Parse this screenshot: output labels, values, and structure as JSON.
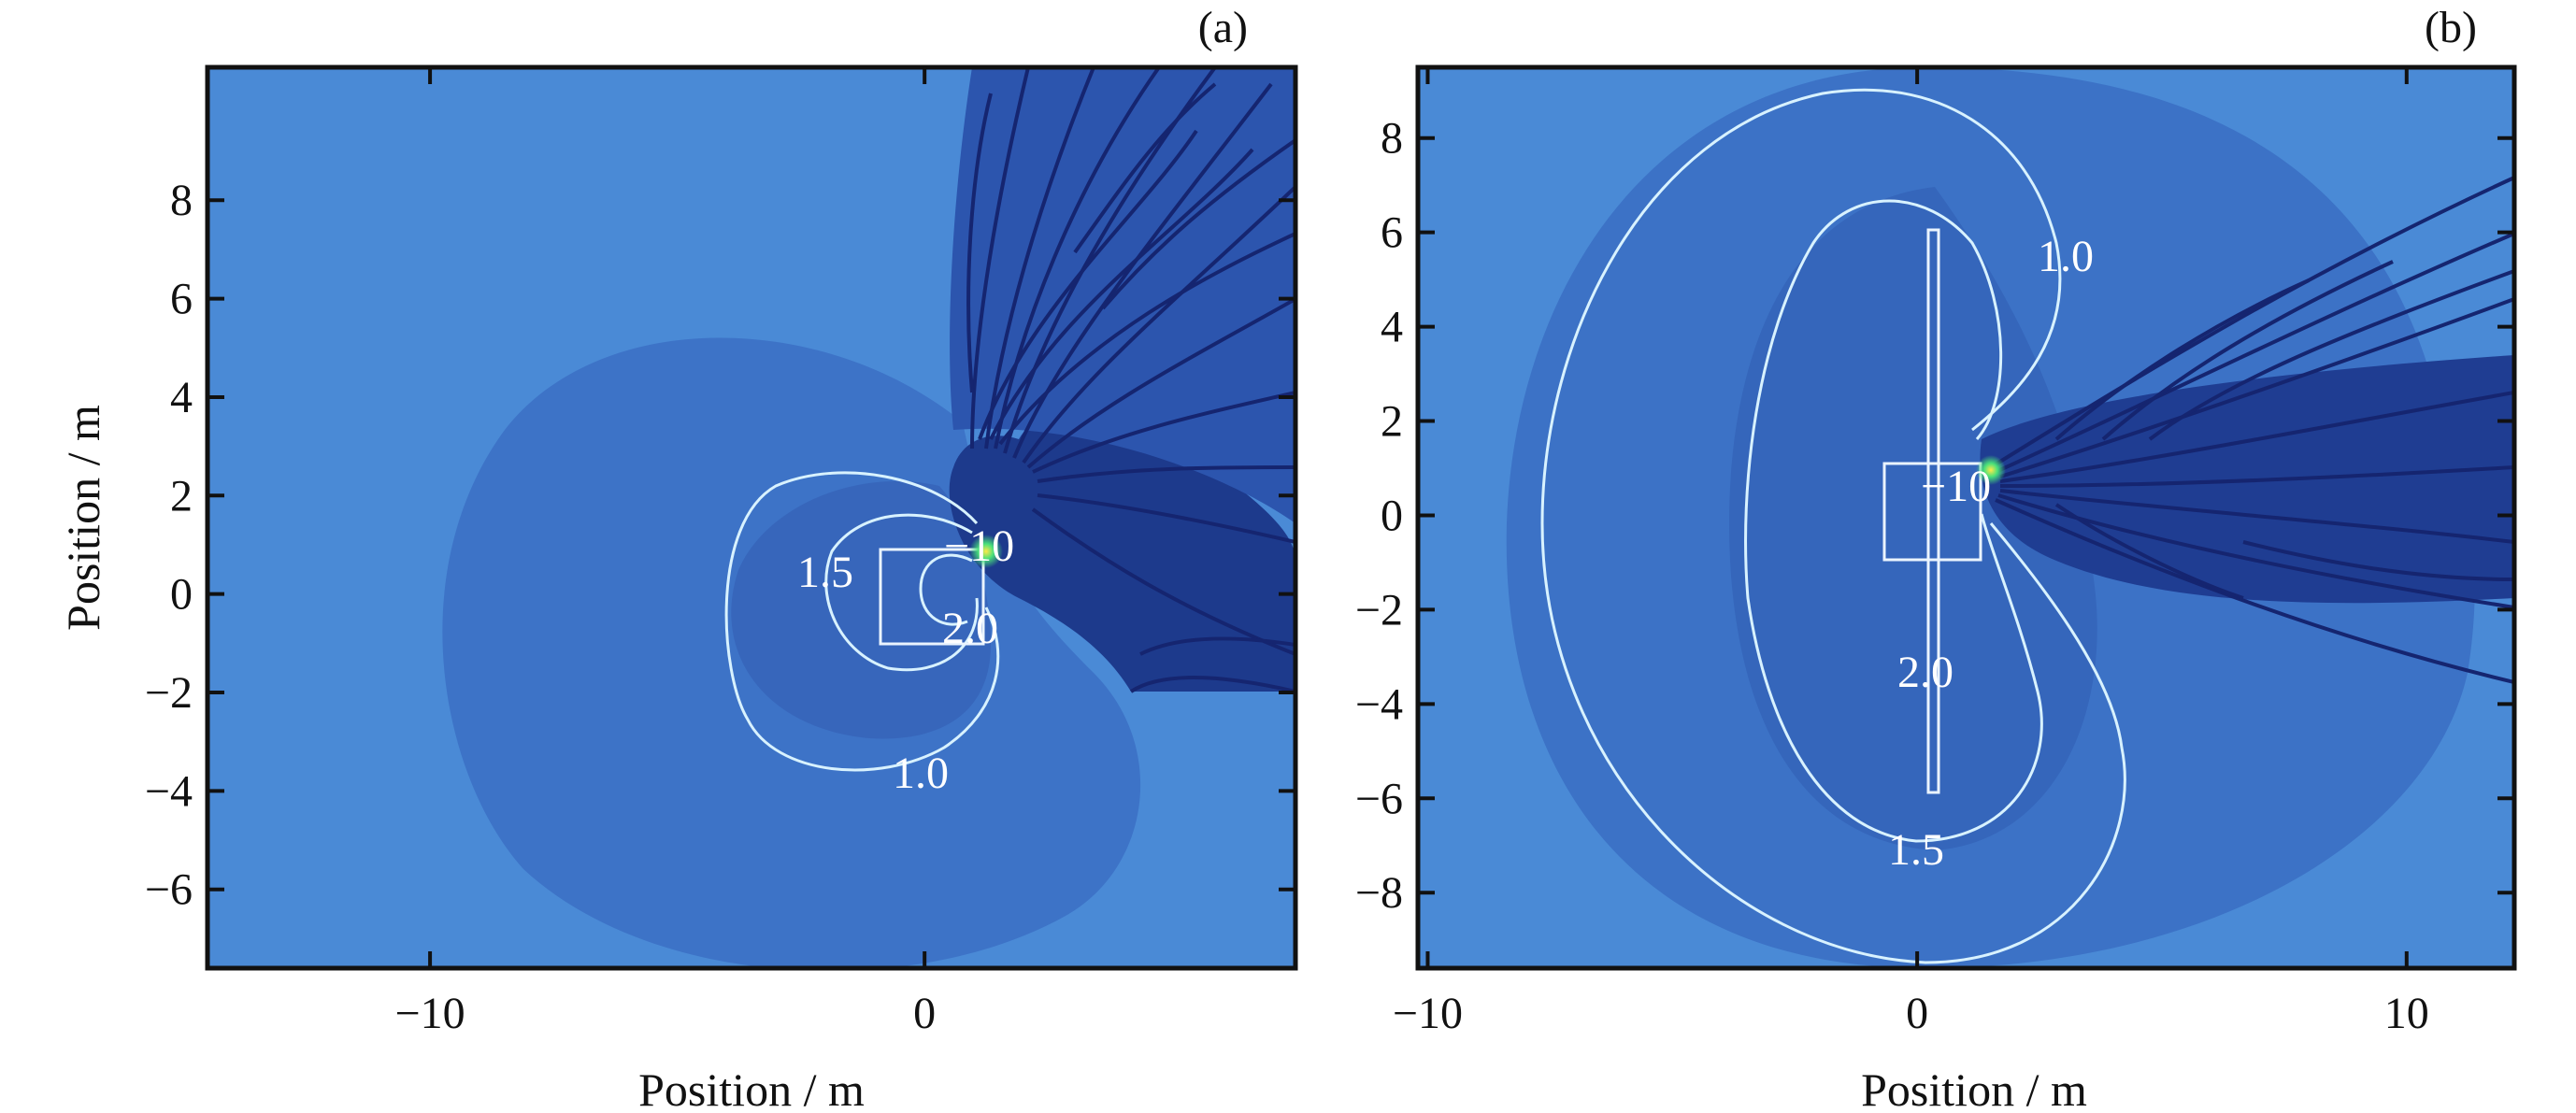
{
  "chart_data": [
    {
      "type": "heatmap",
      "panel": "(a)",
      "xlabel": "Position / m",
      "ylabel": "Position / m",
      "xlim": [
        -14.5,
        7.5
      ],
      "ylim": [
        -7.6,
        10.7
      ],
      "xticks": [
        -10,
        0
      ],
      "yticks": [
        -6,
        -4,
        -2,
        0,
        2,
        4,
        6,
        8
      ],
      "xtick_labels": [
        "−10",
        "0"
      ],
      "ytick_labels": [
        "−6",
        "−4",
        "−2",
        "0",
        "2",
        "4",
        "6",
        "8"
      ],
      "contour_labels": [
        "1.5",
        "−10",
        "2.0",
        "1.0"
      ],
      "colors": {
        "background": "#4a8ad6",
        "dark_region": "#3c72c6",
        "contour": "#d8f2ff",
        "streamlines": "#152570"
      }
    },
    {
      "type": "heatmap",
      "panel": "(b)",
      "xlabel": "Position / m",
      "ylabel": "",
      "xlim": [
        -10.2,
        12.2
      ],
      "ylim": [
        -9.6,
        9.5
      ],
      "xticks": [
        -10,
        0,
        10
      ],
      "yticks": [
        -8,
        -6,
        -4,
        -2,
        0,
        2,
        4,
        6,
        8
      ],
      "xtick_labels": [
        "−10",
        "0",
        "10"
      ],
      "ytick_labels": [
        "−8",
        "−6",
        "−4",
        "−2",
        "0",
        "2",
        "4",
        "6",
        "8"
      ],
      "contour_labels": [
        "1.0",
        "−10",
        "2.0",
        "1.5"
      ],
      "colors": {
        "background": "#4a8ad6",
        "dark_region": "#3a6fc4",
        "contour": "#d8f2ff",
        "streamlines": "#152570"
      }
    }
  ]
}
